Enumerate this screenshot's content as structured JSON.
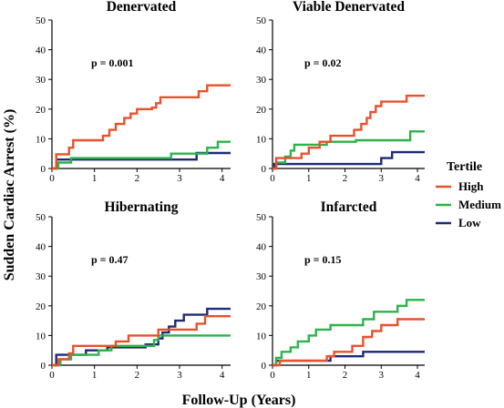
{
  "figure": {
    "ylabel": "Sudden Cardiac Arrest (%)",
    "xlabel": "Follow-Up (Years)"
  },
  "legend": {
    "title": "Tertile",
    "items": [
      {
        "label": "High",
        "color": "#e8512c"
      },
      {
        "label": "Medium",
        "color": "#2db34a"
      },
      {
        "label": "Low",
        "color": "#1f2a78"
      }
    ]
  },
  "chart_data": [
    {
      "type": "line",
      "step": true,
      "title": "Denervated",
      "annotation": "p = 0.001",
      "xlim": [
        0,
        4.2
      ],
      "ylim": [
        0,
        50
      ],
      "xticks": [
        0,
        1,
        2,
        3,
        4
      ],
      "yticks": [
        0,
        10,
        20,
        30,
        40,
        50
      ],
      "series": [
        {
          "name": "High",
          "color": "#e8512c",
          "points": [
            [
              0,
              0
            ],
            [
              0.1,
              4.8
            ],
            [
              0.4,
              7
            ],
            [
              0.5,
              9.5
            ],
            [
              1.0,
              9.5
            ],
            [
              1.2,
              11
            ],
            [
              1.35,
              13
            ],
            [
              1.5,
              15
            ],
            [
              1.7,
              17
            ],
            [
              1.85,
              18.5
            ],
            [
              2.0,
              20
            ],
            [
              2.35,
              20.5
            ],
            [
              2.45,
              22
            ],
            [
              2.55,
              24
            ],
            [
              3.3,
              24
            ],
            [
              3.45,
              26
            ],
            [
              3.65,
              28
            ],
            [
              4.2,
              28
            ]
          ]
        },
        {
          "name": "Medium",
          "color": "#2db34a",
          "points": [
            [
              0,
              0
            ],
            [
              0.15,
              2
            ],
            [
              0.45,
              3.5
            ],
            [
              2.6,
              3.5
            ],
            [
              2.8,
              5
            ],
            [
              3.5,
              5
            ],
            [
              3.65,
              7
            ],
            [
              3.9,
              9
            ],
            [
              4.2,
              9
            ]
          ]
        },
        {
          "name": "Low",
          "color": "#1f2a78",
          "points": [
            [
              0,
              0
            ],
            [
              0.1,
              3
            ],
            [
              3.3,
              3
            ],
            [
              3.4,
              5.2
            ],
            [
              4.2,
              5.2
            ]
          ]
        }
      ]
    },
    {
      "type": "line",
      "step": true,
      "title": "Viable Denervated",
      "annotation": "p = 0.02",
      "xlim": [
        0,
        4.2
      ],
      "ylim": [
        0,
        50
      ],
      "xticks": [
        0,
        1,
        2,
        3,
        4
      ],
      "yticks": [
        0,
        10,
        20,
        30,
        40,
        50
      ],
      "series": [
        {
          "name": "High",
          "color": "#e8512c",
          "points": [
            [
              0,
              0
            ],
            [
              0.1,
              3.5
            ],
            [
              0.6,
              3.5
            ],
            [
              0.8,
              5
            ],
            [
              1.0,
              7
            ],
            [
              1.3,
              9
            ],
            [
              1.6,
              11
            ],
            [
              2.1,
              11
            ],
            [
              2.25,
              13
            ],
            [
              2.45,
              15
            ],
            [
              2.6,
              17
            ],
            [
              2.7,
              19
            ],
            [
              2.85,
              21
            ],
            [
              3.0,
              22.5
            ],
            [
              3.55,
              22.5
            ],
            [
              3.7,
              24.5
            ],
            [
              4.2,
              24.5
            ]
          ]
        },
        {
          "name": "Medium",
          "color": "#2db34a",
          "points": [
            [
              0,
              0
            ],
            [
              0.1,
              2
            ],
            [
              0.35,
              4
            ],
            [
              0.5,
              6
            ],
            [
              0.6,
              8
            ],
            [
              1.0,
              8
            ],
            [
              1.5,
              9
            ],
            [
              2.3,
              9.5
            ],
            [
              3.6,
              9.5
            ],
            [
              3.8,
              12.5
            ],
            [
              4.2,
              12.5
            ]
          ]
        },
        {
          "name": "Low",
          "color": "#1f2a78",
          "points": [
            [
              0,
              0
            ],
            [
              0.05,
              1.5
            ],
            [
              2.6,
              1.5
            ],
            [
              3.0,
              3.5
            ],
            [
              3.3,
              5.5
            ],
            [
              4.2,
              5.5
            ]
          ]
        }
      ]
    },
    {
      "type": "line",
      "step": true,
      "title": "Hibernating",
      "annotation": "p = 0.47",
      "xlim": [
        0,
        4.2
      ],
      "ylim": [
        0,
        50
      ],
      "xticks": [
        0,
        1,
        2,
        3,
        4
      ],
      "yticks": [
        0,
        10,
        20,
        30,
        40,
        50
      ],
      "series": [
        {
          "name": "High",
          "color": "#e8512c",
          "points": [
            [
              0,
              0
            ],
            [
              0.15,
              2
            ],
            [
              0.4,
              4
            ],
            [
              0.5,
              6.5
            ],
            [
              1.2,
              6.5
            ],
            [
              1.5,
              8
            ],
            [
              1.8,
              10
            ],
            [
              2.35,
              10
            ],
            [
              2.5,
              12
            ],
            [
              3.25,
              12
            ],
            [
              3.4,
              14
            ],
            [
              3.6,
              16.5
            ],
            [
              4.2,
              16.5
            ]
          ]
        },
        {
          "name": "Medium",
          "color": "#2db34a",
          "points": [
            [
              0,
              0
            ],
            [
              0.2,
              2
            ],
            [
              0.45,
              3.5
            ],
            [
              0.9,
              3.5
            ],
            [
              1.1,
              5
            ],
            [
              1.4,
              6.5
            ],
            [
              2.2,
              6.5
            ],
            [
              2.4,
              8.5
            ],
            [
              2.5,
              10
            ],
            [
              4.2,
              10
            ]
          ]
        },
        {
          "name": "Low",
          "color": "#1f2a78",
          "points": [
            [
              0,
              0
            ],
            [
              0.1,
              3.5
            ],
            [
              0.6,
              3.5
            ],
            [
              0.8,
              5
            ],
            [
              1.2,
              5
            ],
            [
              1.3,
              6
            ],
            [
              2.0,
              6
            ],
            [
              2.2,
              7
            ],
            [
              2.5,
              9
            ],
            [
              2.6,
              11
            ],
            [
              2.75,
              13
            ],
            [
              2.9,
              15
            ],
            [
              3.1,
              17
            ],
            [
              3.5,
              17
            ],
            [
              3.65,
              19
            ],
            [
              4.2,
              19
            ]
          ]
        }
      ]
    },
    {
      "type": "line",
      "step": true,
      "title": "Infarcted",
      "annotation": "p = 0.15",
      "xlim": [
        0,
        4.2
      ],
      "ylim": [
        0,
        50
      ],
      "xticks": [
        0,
        1,
        2,
        3,
        4
      ],
      "yticks": [
        0,
        10,
        20,
        30,
        40,
        50
      ],
      "series": [
        {
          "name": "High",
          "color": "#e8512c",
          "points": [
            [
              0,
              0
            ],
            [
              0.2,
              1.5
            ],
            [
              1.3,
              1.5
            ],
            [
              1.5,
              3
            ],
            [
              1.7,
              4.5
            ],
            [
              2.0,
              4.5
            ],
            [
              2.2,
              6.5
            ],
            [
              2.5,
              9.5
            ],
            [
              2.75,
              11.5
            ],
            [
              3.0,
              13.5
            ],
            [
              3.3,
              13.5
            ],
            [
              3.45,
              15.5
            ],
            [
              4.2,
              15.5
            ]
          ]
        },
        {
          "name": "Medium",
          "color": "#2db34a",
          "points": [
            [
              0,
              0
            ],
            [
              0.1,
              2.5
            ],
            [
              0.25,
              4.5
            ],
            [
              0.5,
              6
            ],
            [
              0.7,
              8
            ],
            [
              1.0,
              10
            ],
            [
              1.2,
              12
            ],
            [
              1.6,
              13.5
            ],
            [
              2.4,
              13.5
            ],
            [
              2.5,
              15.5
            ],
            [
              2.8,
              18
            ],
            [
              3.3,
              18
            ],
            [
              3.45,
              20
            ],
            [
              3.7,
              22
            ],
            [
              4.2,
              22
            ]
          ]
        },
        {
          "name": "Low",
          "color": "#1f2a78",
          "points": [
            [
              0,
              0
            ],
            [
              0.1,
              1.5
            ],
            [
              1.5,
              1.5
            ],
            [
              1.6,
              3
            ],
            [
              2.3,
              3
            ],
            [
              2.5,
              4.5
            ],
            [
              4.2,
              4.5
            ]
          ]
        }
      ]
    }
  ]
}
